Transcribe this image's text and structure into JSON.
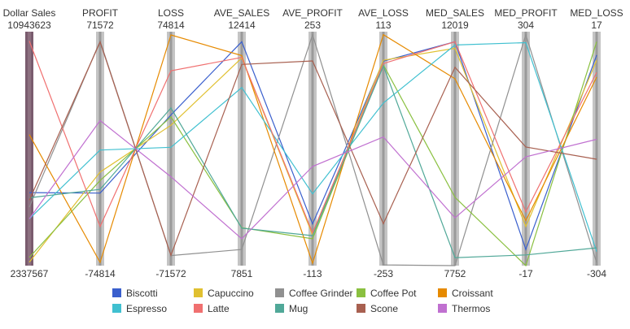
{
  "chart_data": {
    "type": "parallel-coordinates",
    "axes": [
      {
        "name": "Dollar Sales",
        "max": "10943623",
        "min": "2337567"
      },
      {
        "name": "PROFIT",
        "max": "71572",
        "min": "-74814"
      },
      {
        "name": "LOSS",
        "max": "74814",
        "min": "-71572"
      },
      {
        "name": "AVE_SALES",
        "max": "12414",
        "min": "7851"
      },
      {
        "name": "AVE_PROFIT",
        "max": "253",
        "min": "-113"
      },
      {
        "name": "AVE_LOSS",
        "max": "113",
        "min": "-253"
      },
      {
        "name": "MED_SALES",
        "max": "12019",
        "min": "7752"
      },
      {
        "name": "MED_PROFIT",
        "max": "304",
        "min": "-17"
      },
      {
        "name": "MED_LOSS",
        "max": "17",
        "min": "-304"
      }
    ],
    "series": [
      {
        "name": "Biscotti",
        "color": "#3a5fcd",
        "values": [
          0.312,
          0.31,
          0.644,
          0.957,
          0.178,
          0.874,
          0.957,
          0.069,
          0.9
        ]
      },
      {
        "name": "Capuccino",
        "color": "#e0c030",
        "values": [
          0.015,
          0.4,
          0.6,
          0.888,
          0.131,
          0.878,
          0.929,
          0.167,
          0.877
        ]
      },
      {
        "name": "Coffee Grinder",
        "color": "#909090",
        "values": [
          0.25,
          0.96,
          0.043,
          0.069,
          0.987,
          0.003,
          0.0,
          0.987,
          0.013
        ]
      },
      {
        "name": "Coffee Pot",
        "color": "#8ac040",
        "values": [
          0.035,
          0.364,
          0.636,
          0.162,
          0.115,
          0.858,
          0.292,
          0.0,
          0.957
        ]
      },
      {
        "name": "Croissant",
        "color": "#e68a00",
        "values": [
          0.56,
          0.014,
          0.986,
          0.898,
          0.01,
          0.987,
          0.799,
          0.192,
          0.806
        ]
      },
      {
        "name": "Espresso",
        "color": "#40c0d0",
        "values": [
          0.2,
          0.494,
          0.506,
          0.761,
          0.307,
          0.695,
          0.943,
          0.953,
          0.06
        ]
      },
      {
        "name": "Latte",
        "color": "#f07070",
        "values": [
          0.96,
          0.167,
          0.833,
          0.89,
          0.14,
          0.864,
          0.957,
          0.23,
          0.826
        ]
      },
      {
        "name": "Mug",
        "color": "#50a898",
        "values": [
          0.29,
          0.326,
          0.674,
          0.16,
          0.128,
          0.853,
          0.034,
          0.046,
          0.076
        ]
      },
      {
        "name": "Scone",
        "color": "#a86050",
        "values": [
          0.28,
          0.956,
          0.044,
          0.86,
          0.875,
          0.179,
          0.848,
          0.507,
          0.455
        ]
      },
      {
        "name": "Thermos",
        "color": "#c070d0",
        "values": [
          0.2,
          0.62,
          0.38,
          0.115,
          0.424,
          0.55,
          0.204,
          0.465,
          0.54
        ]
      }
    ],
    "legend_position": "bottom"
  }
}
